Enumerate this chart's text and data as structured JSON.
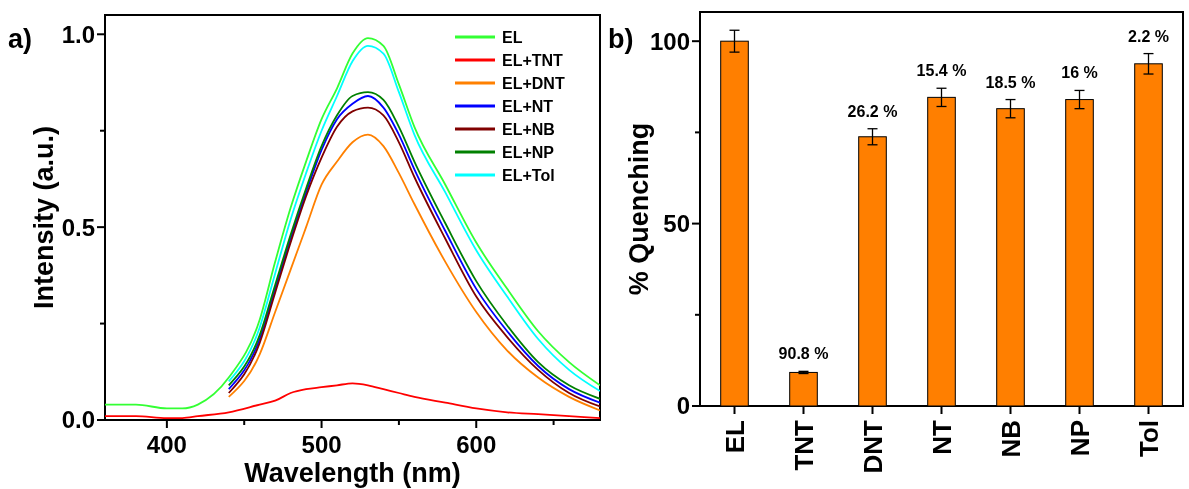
{
  "chart_data": [
    {
      "type": "line",
      "xlabel": "Wavelength (nm)",
      "ylabel": "Intensity (a.u.)",
      "annotations": [
        "a)"
      ],
      "x": [
        360,
        380,
        400,
        410,
        420,
        440,
        460,
        470,
        480,
        490,
        500,
        510,
        520,
        530,
        540,
        550,
        560,
        580,
        600,
        620,
        640,
        660,
        680
      ],
      "xlim": [
        360,
        680
      ],
      "ylim": [
        0,
        1.05
      ],
      "xticks": [
        400,
        {
          "value": 450,
          "label": null
        },
        500,
        {
          "value": 550,
          "label": null
        },
        600,
        {
          "value": 650,
          "label": null
        }
      ],
      "yticks": [
        "0.0",
        {
          "value": 0.25,
          "label": null
        },
        {
          "value": 0.5,
          "label": "0.5"
        },
        {
          "value": 0.75,
          "label": null
        },
        {
          "value": 1,
          "label": "1.0"
        }
      ],
      "legend": "top right",
      "grid": false,
      "series": [
        {
          "name": "EL",
          "color": "#33ff33",
          "values": [
            0.04,
            0.04,
            0.03,
            0.03,
            0.04,
            0.11,
            0.26,
            0.41,
            0.55,
            0.67,
            0.78,
            0.86,
            0.95,
            0.99,
            0.97,
            0.87,
            0.76,
            0.61,
            0.46,
            0.34,
            0.23,
            0.15,
            0.09
          ]
        },
        {
          "name": "EL+TNT",
          "color": "#ff0000",
          "values": [
            0.01,
            0.01,
            0.005,
            0.005,
            0.01,
            0.02,
            0.04,
            0.05,
            0.07,
            0.08,
            0.085,
            0.09,
            0.095,
            0.09,
            0.08,
            0.07,
            0.06,
            0.045,
            0.03,
            0.02,
            0.015,
            0.01,
            0.005
          ]
        },
        {
          "name": "EL+DNT",
          "color": "#ff8000",
          "values": [
            null,
            null,
            null,
            null,
            null,
            0.06,
            0.17,
            0.28,
            0.39,
            0.5,
            0.61,
            0.67,
            0.72,
            0.74,
            0.71,
            0.64,
            0.56,
            0.41,
            0.28,
            0.18,
            0.11,
            0.06,
            0.025
          ]
        },
        {
          "name": "EL+NT",
          "color": "#0000ff",
          "values": [
            null,
            null,
            null,
            null,
            null,
            0.08,
            0.21,
            0.34,
            0.47,
            0.59,
            0.7,
            0.78,
            0.82,
            0.84,
            0.81,
            0.74,
            0.65,
            0.49,
            0.34,
            0.23,
            0.14,
            0.08,
            0.045
          ]
        },
        {
          "name": "EL+NB",
          "color": "#800000",
          "values": [
            null,
            null,
            null,
            null,
            null,
            0.07,
            0.2,
            0.33,
            0.46,
            0.58,
            0.68,
            0.76,
            0.8,
            0.81,
            0.79,
            0.72,
            0.63,
            0.47,
            0.32,
            0.215,
            0.13,
            0.07,
            0.035
          ]
        },
        {
          "name": "EL+NP",
          "color": "#008000",
          "values": [
            null,
            null,
            null,
            null,
            null,
            0.09,
            0.22,
            0.35,
            0.48,
            0.6,
            0.71,
            0.79,
            0.84,
            0.85,
            0.83,
            0.76,
            0.67,
            0.51,
            0.36,
            0.245,
            0.15,
            0.09,
            0.055
          ]
        },
        {
          "name": "EL+Tol",
          "color": "#00ffff",
          "values": [
            null,
            null,
            null,
            null,
            null,
            0.1,
            0.24,
            0.38,
            0.52,
            0.64,
            0.75,
            0.84,
            0.93,
            0.97,
            0.95,
            0.85,
            0.74,
            0.59,
            0.44,
            0.32,
            0.21,
            0.13,
            0.075
          ]
        }
      ]
    },
    {
      "type": "bar",
      "ylabel": "% Quenching",
      "annotations": [
        "b)",
        {
          "text": "90.8 %",
          "x": "TNT",
          "y": 9.5
        },
        {
          "text": "26.2 %",
          "x": "DNT",
          "y": 76
        },
        {
          "text": "15.4 %",
          "x": "NT",
          "y": 87.1
        },
        {
          "text": "18.5 %",
          "x": "NB",
          "y": 84
        },
        {
          "text": "16 %",
          "x": "NP",
          "y": 86.5
        },
        {
          "text": "2.2 %",
          "x": "Tol",
          "y": 96.6
        }
      ],
      "categories": [
        "EL",
        "TNT",
        "DNT",
        "NT",
        "NB",
        "NP",
        "Tol"
      ],
      "ylim": [
        0,
        108
      ],
      "yticks": [
        0,
        {
          "value": 25,
          "label": null
        },
        50,
        {
          "value": 75,
          "label": null
        },
        100
      ],
      "grid": false,
      "color": "#ff7f00",
      "values": [
        100,
        9.2,
        73.8,
        84.6,
        81.5,
        84,
        93.8
      ],
      "errors": [
        3,
        0.3,
        2.2,
        2.5,
        2.5,
        2.5,
        2.8
      ]
    }
  ]
}
